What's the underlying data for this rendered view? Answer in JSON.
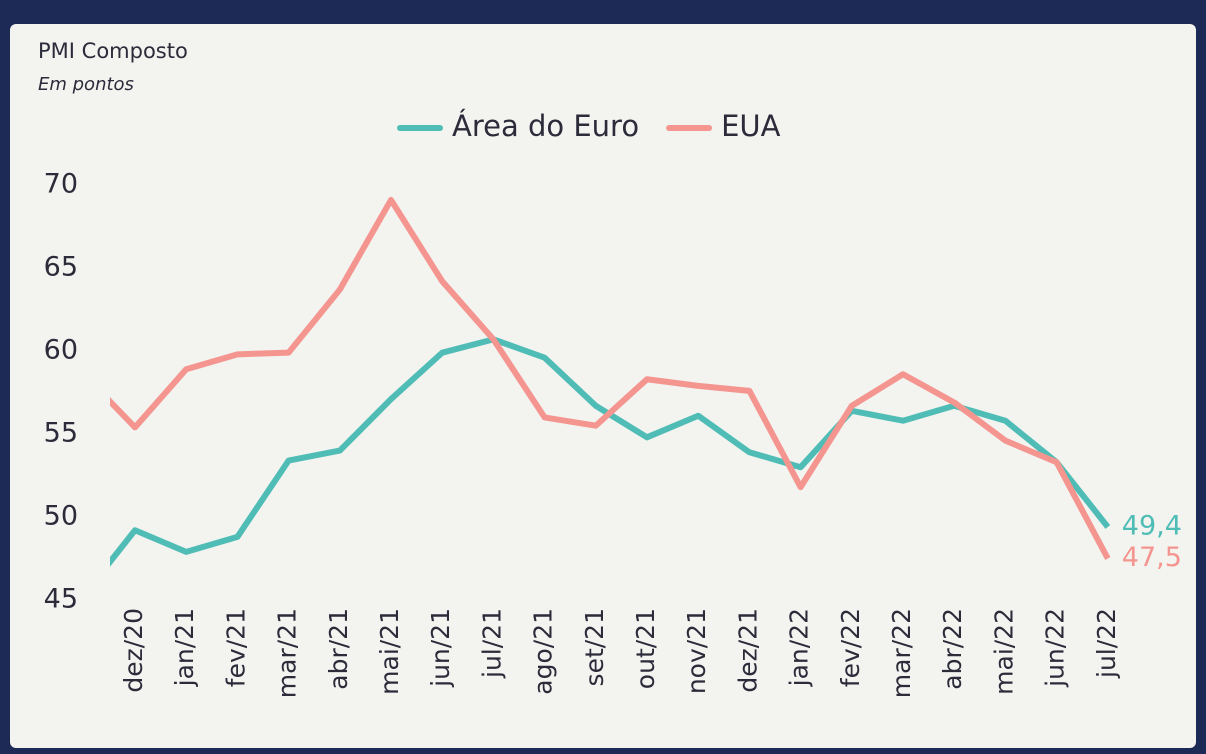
{
  "chart_data": {
    "type": "line",
    "title": "PMI Composto",
    "subtitle": "Em pontos",
    "categories": [
      null,
      "dez/20",
      "jan/21",
      "fev/21",
      "mar/21",
      "abr/21",
      "mai/21",
      "jun/21",
      "jul/21",
      "ago/21",
      "set/21",
      "out/21",
      "nov/21",
      "dez/21",
      "jan/22",
      "fev/22",
      "mar/22",
      "abr/22",
      "mai/22",
      "jun/22",
      "jul/22"
    ],
    "series": [
      {
        "name": "Área do Euro",
        "color": "#4fbdb6",
        "values": [
          45.3,
          49.2,
          47.9,
          48.8,
          53.4,
          54.0,
          57.1,
          59.9,
          60.7,
          59.6,
          56.7,
          54.8,
          56.1,
          53.9,
          53.0,
          56.4,
          55.8,
          56.7,
          55.8,
          53.3,
          49.4
        ],
        "value_labels": [
          null,
          null,
          null,
          null,
          null,
          null,
          null,
          null,
          null,
          null,
          null,
          null,
          null,
          null,
          null,
          null,
          null,
          null,
          null,
          null,
          "49,4"
        ]
      },
      {
        "name": "EUA",
        "color": "#f4958f",
        "values": [
          58.6,
          55.4,
          58.9,
          59.8,
          59.9,
          63.7,
          69.1,
          64.2,
          60.7,
          56.0,
          55.5,
          58.3,
          57.9,
          57.6,
          51.8,
          56.7,
          58.6,
          56.9,
          54.6,
          53.3,
          47.5
        ],
        "value_labels": [
          null,
          null,
          null,
          null,
          null,
          null,
          null,
          null,
          null,
          null,
          null,
          null,
          null,
          null,
          null,
          null,
          null,
          null,
          null,
          null,
          "47,5"
        ]
      }
    ],
    "ylim": [
      45,
      70
    ],
    "yticks": [
      45,
      50,
      55,
      60,
      65,
      70
    ],
    "grid": false,
    "legend": "top"
  }
}
